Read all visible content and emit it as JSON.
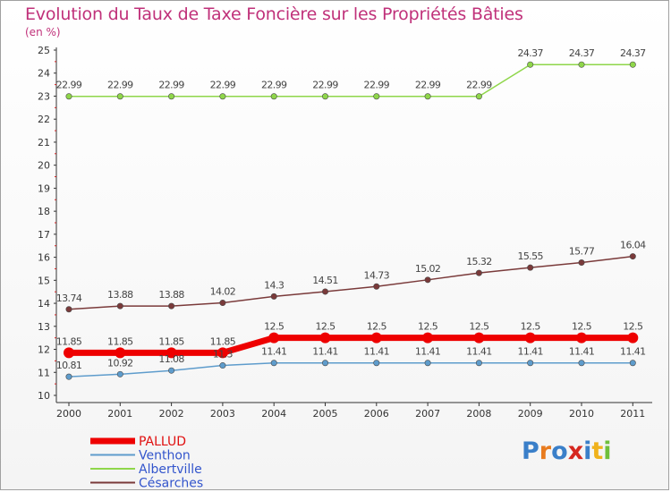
{
  "title": "Evolution du Taux de Taxe Foncière sur les Propriétés Bâties",
  "unit": "(en %)",
  "logo": {
    "text": "Proxiti",
    "letter_colors": [
      "#3a7fc9",
      "#e87b1e",
      "#3a7fc9",
      "#d6271f",
      "#3a7fc9",
      "#f0b21c",
      "#6fbf3b"
    ]
  },
  "chart_data": {
    "type": "line",
    "title": "Evolution du Taux de Taxe Foncière sur les Propriétés Bâties",
    "ylabel": "(en %)",
    "xlabel": "",
    "ylim": [
      10,
      25
    ],
    "grid": false,
    "legend_position": "bottom-left",
    "x": [
      "2000",
      "2001",
      "2002",
      "2003",
      "2004",
      "2005",
      "2006",
      "2007",
      "2008",
      "2009",
      "2010",
      "2011"
    ],
    "y_ticks": [
      "10",
      "11",
      "12",
      "13",
      "14",
      "15",
      "16",
      "17",
      "18",
      "19",
      "20",
      "21",
      "22",
      "23",
      "24",
      "25"
    ],
    "series": [
      {
        "name": "PALLUD",
        "color": "#ee0000",
        "values": [
          11.85,
          11.85,
          11.85,
          11.85,
          12.5,
          12.5,
          12.5,
          12.5,
          12.5,
          12.5,
          12.5,
          12.5
        ],
        "labels": [
          "11.85",
          "11.85",
          "11.85",
          "11.85",
          "12.5",
          "12.5",
          "12.5",
          "12.5",
          "12.5",
          "12.5",
          "12.5",
          "12.5"
        ]
      },
      {
        "name": "Venthon",
        "color": "#5e9ccc",
        "values": [
          10.81,
          10.92,
          11.08,
          11.3,
          11.41,
          11.41,
          11.41,
          11.41,
          11.41,
          11.41,
          11.41,
          11.41
        ],
        "labels": [
          "10.81",
          "10.92",
          "11.08",
          "11.3",
          "11.41",
          "11.41",
          "11.41",
          "11.41",
          "11.41",
          "11.41",
          "11.41",
          "11.41"
        ]
      },
      {
        "name": "Albertville",
        "color": "#8fd64a",
        "values": [
          22.99,
          22.99,
          22.99,
          22.99,
          22.99,
          22.99,
          22.99,
          22.99,
          22.99,
          24.37,
          24.37,
          24.37
        ],
        "labels": [
          "22.99",
          "22.99",
          "22.99",
          "22.99",
          "22.99",
          "22.99",
          "22.99",
          "22.99",
          "22.99",
          "24.37",
          "24.37",
          "24.37"
        ]
      },
      {
        "name": "Césarches",
        "color": "#7a3a3a",
        "values": [
          13.74,
          13.88,
          13.88,
          14.02,
          14.3,
          14.51,
          14.73,
          15.02,
          15.32,
          15.55,
          15.77,
          16.04
        ],
        "labels": [
          "13.74",
          "13.88",
          "13.88",
          "14.02",
          "14.3",
          "14.51",
          "14.73",
          "15.02",
          "15.32",
          "15.55",
          "15.77",
          "16.04"
        ]
      }
    ]
  }
}
